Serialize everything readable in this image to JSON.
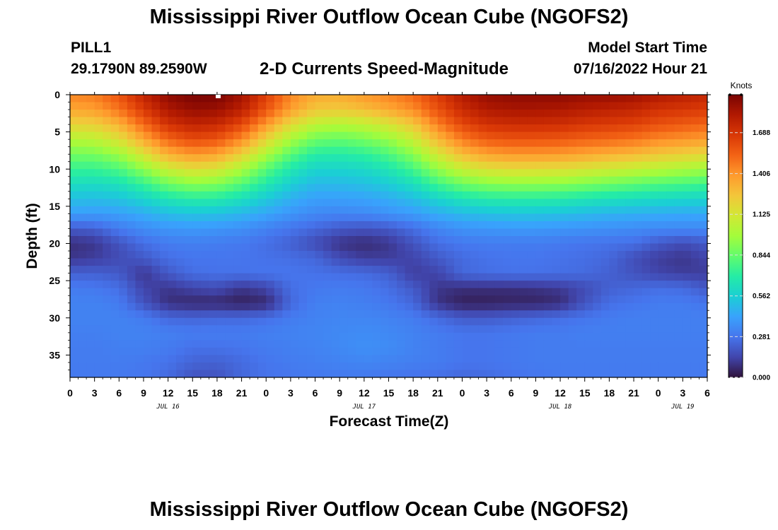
{
  "header": {
    "title": "Mississippi River Outflow Ocean Cube (NGOFS2)",
    "station": "PILL1",
    "coordinates": "29.1790N  89.2590W",
    "subtitle": "2-D Currents Speed-Magnitude",
    "model_start_label": "Model Start Time",
    "model_start_value": "07/16/2022 Hour 21"
  },
  "footer": {
    "title": "Mississippi River Outflow Ocean Cube (NGOFS2)"
  },
  "chart_data": {
    "type": "heatmap",
    "title": "2-D Currents Speed-Magnitude",
    "xlabel": "Forecast Time(Z)",
    "ylabel": "Depth (ft)",
    "colorbar_label": "Knots",
    "x_range_hours": [
      0,
      78
    ],
    "x_tick_labels": [
      "0",
      "3",
      "6",
      "9",
      "12",
      "15",
      "18",
      "21",
      "0",
      "3",
      "6",
      "9",
      "12",
      "15",
      "18",
      "21",
      "0",
      "3",
      "6",
      "9",
      "12",
      "15",
      "18",
      "21",
      "0",
      "3",
      "6"
    ],
    "day_labels": [
      {
        "label": "JUL 16",
        "hour": 12
      },
      {
        "label": "JUL 17",
        "hour": 36
      },
      {
        "label": "JUL 18",
        "hour": 60
      },
      {
        "label": "JUL 19",
        "hour": 75
      }
    ],
    "y_range_ft": [
      0,
      38
    ],
    "y_ticks": [
      0,
      5,
      10,
      15,
      20,
      25,
      30,
      35
    ],
    "colorbar_ticks": [
      0.0,
      0.281,
      0.562,
      0.844,
      1.125,
      1.406,
      1.688
    ],
    "colorbar_tick_labels": [
      "0.000",
      "0.281",
      "0.562",
      "0.844",
      "1.125",
      "1.406",
      "1.688"
    ],
    "colorbar_range": [
      0,
      1.95
    ],
    "colormap": [
      "#30123b",
      "#4145ab",
      "#4675ed",
      "#39a2fc",
      "#1bcfd4",
      "#24eca6",
      "#61fc6c",
      "#a4fc3b",
      "#d1e834",
      "#f3c63a",
      "#fe9b2d",
      "#f36315",
      "#d93806",
      "#b11901",
      "#7a0403"
    ],
    "x_hours": [
      0,
      3,
      6,
      9,
      12,
      15,
      18,
      21,
      24,
      27,
      30,
      33,
      36,
      39,
      42,
      45,
      48,
      51,
      54,
      57,
      60,
      63,
      66,
      69,
      72,
      75,
      78
    ],
    "depth_rows_ft": [
      0,
      2,
      4,
      6,
      8,
      10,
      12,
      14,
      16,
      18,
      20,
      22,
      24,
      26,
      28,
      30,
      32,
      34,
      36,
      38
    ],
    "speed_knots": [
      [
        1.45,
        1.47,
        1.58,
        1.76,
        1.9,
        1.95,
        1.95,
        1.85,
        1.65,
        1.45,
        1.34,
        1.34,
        1.4,
        1.45,
        1.52,
        1.66,
        1.8,
        1.88,
        1.9,
        1.9,
        1.9,
        1.88,
        1.88,
        1.86,
        1.81,
        1.78,
        1.75
      ],
      [
        1.35,
        1.38,
        1.49,
        1.67,
        1.82,
        1.88,
        1.87,
        1.78,
        1.58,
        1.38,
        1.25,
        1.24,
        1.28,
        1.35,
        1.43,
        1.59,
        1.73,
        1.81,
        1.83,
        1.83,
        1.82,
        1.79,
        1.77,
        1.75,
        1.7,
        1.68,
        1.66
      ],
      [
        1.2,
        1.22,
        1.32,
        1.52,
        1.7,
        1.76,
        1.74,
        1.62,
        1.4,
        1.18,
        1.05,
        1.02,
        1.06,
        1.13,
        1.25,
        1.46,
        1.62,
        1.7,
        1.72,
        1.72,
        1.71,
        1.68,
        1.66,
        1.64,
        1.59,
        1.56,
        1.53
      ],
      [
        1.02,
        1.05,
        1.15,
        1.35,
        1.53,
        1.61,
        1.58,
        1.44,
        1.2,
        0.99,
        0.86,
        0.84,
        0.88,
        0.95,
        1.08,
        1.3,
        1.47,
        1.56,
        1.58,
        1.58,
        1.57,
        1.54,
        1.52,
        1.49,
        1.44,
        1.41,
        1.38
      ],
      [
        0.87,
        0.88,
        0.96,
        1.14,
        1.33,
        1.4,
        1.37,
        1.22,
        1.0,
        0.82,
        0.7,
        0.69,
        0.72,
        0.79,
        0.92,
        1.12,
        1.29,
        1.37,
        1.4,
        1.4,
        1.39,
        1.36,
        1.33,
        1.3,
        1.25,
        1.22,
        1.19
      ],
      [
        0.74,
        0.74,
        0.79,
        0.93,
        1.09,
        1.16,
        1.13,
        1.0,
        0.82,
        0.67,
        0.58,
        0.58,
        0.6,
        0.66,
        0.77,
        0.94,
        1.08,
        1.15,
        1.17,
        1.17,
        1.16,
        1.13,
        1.1,
        1.07,
        1.03,
        1.0,
        0.97
      ],
      [
        0.62,
        0.61,
        0.64,
        0.74,
        0.86,
        0.92,
        0.9,
        0.81,
        0.68,
        0.56,
        0.49,
        0.49,
        0.51,
        0.55,
        0.63,
        0.76,
        0.86,
        0.91,
        0.93,
        0.93,
        0.92,
        0.89,
        0.86,
        0.83,
        0.8,
        0.78,
        0.76
      ],
      [
        0.51,
        0.5,
        0.52,
        0.58,
        0.66,
        0.7,
        0.69,
        0.63,
        0.54,
        0.46,
        0.41,
        0.41,
        0.42,
        0.45,
        0.5,
        0.58,
        0.65,
        0.69,
        0.7,
        0.7,
        0.69,
        0.66,
        0.64,
        0.62,
        0.6,
        0.59,
        0.58
      ],
      [
        0.41,
        0.4,
        0.41,
        0.45,
        0.5,
        0.52,
        0.51,
        0.48,
        0.43,
        0.38,
        0.34,
        0.33,
        0.34,
        0.37,
        0.4,
        0.45,
        0.49,
        0.51,
        0.52,
        0.52,
        0.51,
        0.49,
        0.47,
        0.46,
        0.45,
        0.44,
        0.44
      ],
      [
        0.2,
        0.22,
        0.3,
        0.35,
        0.38,
        0.39,
        0.38,
        0.36,
        0.32,
        0.28,
        0.24,
        0.2,
        0.18,
        0.2,
        0.26,
        0.33,
        0.37,
        0.38,
        0.39,
        0.39,
        0.38,
        0.37,
        0.36,
        0.35,
        0.34,
        0.34,
        0.34
      ],
      [
        0.08,
        0.1,
        0.18,
        0.26,
        0.3,
        0.31,
        0.3,
        0.29,
        0.26,
        0.22,
        0.16,
        0.09,
        0.07,
        0.1,
        0.18,
        0.26,
        0.29,
        0.3,
        0.3,
        0.3,
        0.29,
        0.28,
        0.27,
        0.26,
        0.2,
        0.16,
        0.2
      ],
      [
        0.1,
        0.12,
        0.16,
        0.2,
        0.26,
        0.28,
        0.28,
        0.28,
        0.27,
        0.26,
        0.24,
        0.16,
        0.12,
        0.12,
        0.14,
        0.2,
        0.25,
        0.27,
        0.28,
        0.28,
        0.27,
        0.26,
        0.24,
        0.17,
        0.12,
        0.1,
        0.14
      ],
      [
        0.22,
        0.22,
        0.2,
        0.1,
        0.2,
        0.26,
        0.27,
        0.27,
        0.28,
        0.28,
        0.27,
        0.26,
        0.25,
        0.22,
        0.12,
        0.14,
        0.24,
        0.26,
        0.27,
        0.27,
        0.26,
        0.25,
        0.22,
        0.18,
        0.14,
        0.12,
        0.12
      ],
      [
        0.3,
        0.29,
        0.26,
        0.14,
        0.1,
        0.14,
        0.16,
        0.1,
        0.14,
        0.26,
        0.29,
        0.3,
        0.29,
        0.26,
        0.2,
        0.1,
        0.08,
        0.08,
        0.08,
        0.09,
        0.11,
        0.16,
        0.22,
        0.24,
        0.26,
        0.25,
        0.2
      ],
      [
        0.32,
        0.32,
        0.3,
        0.18,
        0.08,
        0.06,
        0.06,
        0.04,
        0.06,
        0.24,
        0.31,
        0.32,
        0.31,
        0.29,
        0.24,
        0.09,
        0.04,
        0.04,
        0.05,
        0.05,
        0.07,
        0.18,
        0.26,
        0.28,
        0.3,
        0.3,
        0.28
      ],
      [
        0.32,
        0.32,
        0.32,
        0.3,
        0.24,
        0.23,
        0.24,
        0.24,
        0.26,
        0.3,
        0.32,
        0.33,
        0.33,
        0.32,
        0.3,
        0.25,
        0.2,
        0.2,
        0.22,
        0.24,
        0.26,
        0.28,
        0.3,
        0.31,
        0.31,
        0.31,
        0.31
      ],
      [
        0.31,
        0.31,
        0.32,
        0.32,
        0.31,
        0.3,
        0.3,
        0.3,
        0.31,
        0.32,
        0.33,
        0.34,
        0.35,
        0.34,
        0.32,
        0.3,
        0.28,
        0.28,
        0.29,
        0.3,
        0.3,
        0.31,
        0.31,
        0.31,
        0.31,
        0.31,
        0.31
      ],
      [
        0.3,
        0.3,
        0.31,
        0.31,
        0.3,
        0.27,
        0.27,
        0.28,
        0.3,
        0.31,
        0.32,
        0.34,
        0.36,
        0.35,
        0.32,
        0.3,
        0.28,
        0.28,
        0.29,
        0.3,
        0.3,
        0.3,
        0.3,
        0.3,
        0.3,
        0.3,
        0.3
      ],
      [
        0.3,
        0.3,
        0.3,
        0.29,
        0.27,
        0.23,
        0.22,
        0.25,
        0.28,
        0.3,
        0.31,
        0.32,
        0.33,
        0.32,
        0.31,
        0.3,
        0.28,
        0.28,
        0.29,
        0.3,
        0.3,
        0.3,
        0.3,
        0.3,
        0.3,
        0.3,
        0.3
      ],
      [
        0.29,
        0.29,
        0.29,
        0.28,
        0.25,
        0.18,
        0.18,
        0.24,
        0.27,
        0.28,
        0.29,
        0.29,
        0.29,
        0.28,
        0.27,
        0.26,
        0.24,
        0.25,
        0.27,
        0.28,
        0.29,
        0.29,
        0.29,
        0.29,
        0.29,
        0.29,
        0.29
      ]
    ]
  }
}
